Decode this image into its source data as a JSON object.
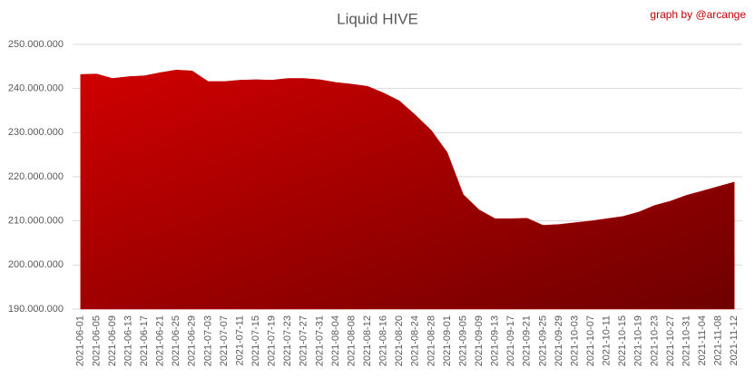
{
  "chart_data": {
    "type": "area",
    "title": "Liquid HIVE",
    "annotation": "graph by @arcange",
    "categories": [
      "2021-06-01",
      "2021-06-05",
      "2021-06-09",
      "2021-06-13",
      "2021-06-17",
      "2021-06-21",
      "2021-06-25",
      "2021-06-29",
      "2021-07-03",
      "2021-07-07",
      "2021-07-11",
      "2021-07-15",
      "2021-07-19",
      "2021-07-23",
      "2021-07-27",
      "2021-07-31",
      "2021-08-04",
      "2021-08-08",
      "2021-08-12",
      "2021-08-16",
      "2021-08-20",
      "2021-08-24",
      "2021-08-28",
      "2021-09-01",
      "2021-09-05",
      "2021-09-09",
      "2021-09-13",
      "2021-09-17",
      "2021-09-21",
      "2021-09-25",
      "2021-09-29",
      "2021-10-03",
      "2021-10-07",
      "2021-10-11",
      "2021-10-15",
      "2021-10-19",
      "2021-10-23",
      "2021-10-27",
      "2021-10-31",
      "2021-11-04",
      "2021-11-08",
      "2021-11-12"
    ],
    "values": [
      243200000,
      243300000,
      242300000,
      242700000,
      242900000,
      243600000,
      244200000,
      244000000,
      241600000,
      241600000,
      241900000,
      242000000,
      241900000,
      242300000,
      242300000,
      242000000,
      241400000,
      241000000,
      240500000,
      239000000,
      237200000,
      234000000,
      230500000,
      225500000,
      216000000,
      212500000,
      210500000,
      210500000,
      210600000,
      209000000,
      209200000,
      209600000,
      210000000,
      210500000,
      211000000,
      212000000,
      213500000,
      214500000,
      215800000,
      216800000,
      217800000,
      218800000
    ],
    "color": "#c00000",
    "ylim": [
      190000000,
      250000000
    ],
    "yticks": [
      {
        "value": 190000000,
        "label": "190.000.000"
      },
      {
        "value": 200000000,
        "label": "200.000.000"
      },
      {
        "value": 210000000,
        "label": "210.000.000"
      },
      {
        "value": 220000000,
        "label": "220.000.000"
      },
      {
        "value": 230000000,
        "label": "230.000.000"
      },
      {
        "value": 240000000,
        "label": "240.000.000"
      },
      {
        "value": 250000000,
        "label": "250.000.000"
      }
    ],
    "grid": true
  }
}
